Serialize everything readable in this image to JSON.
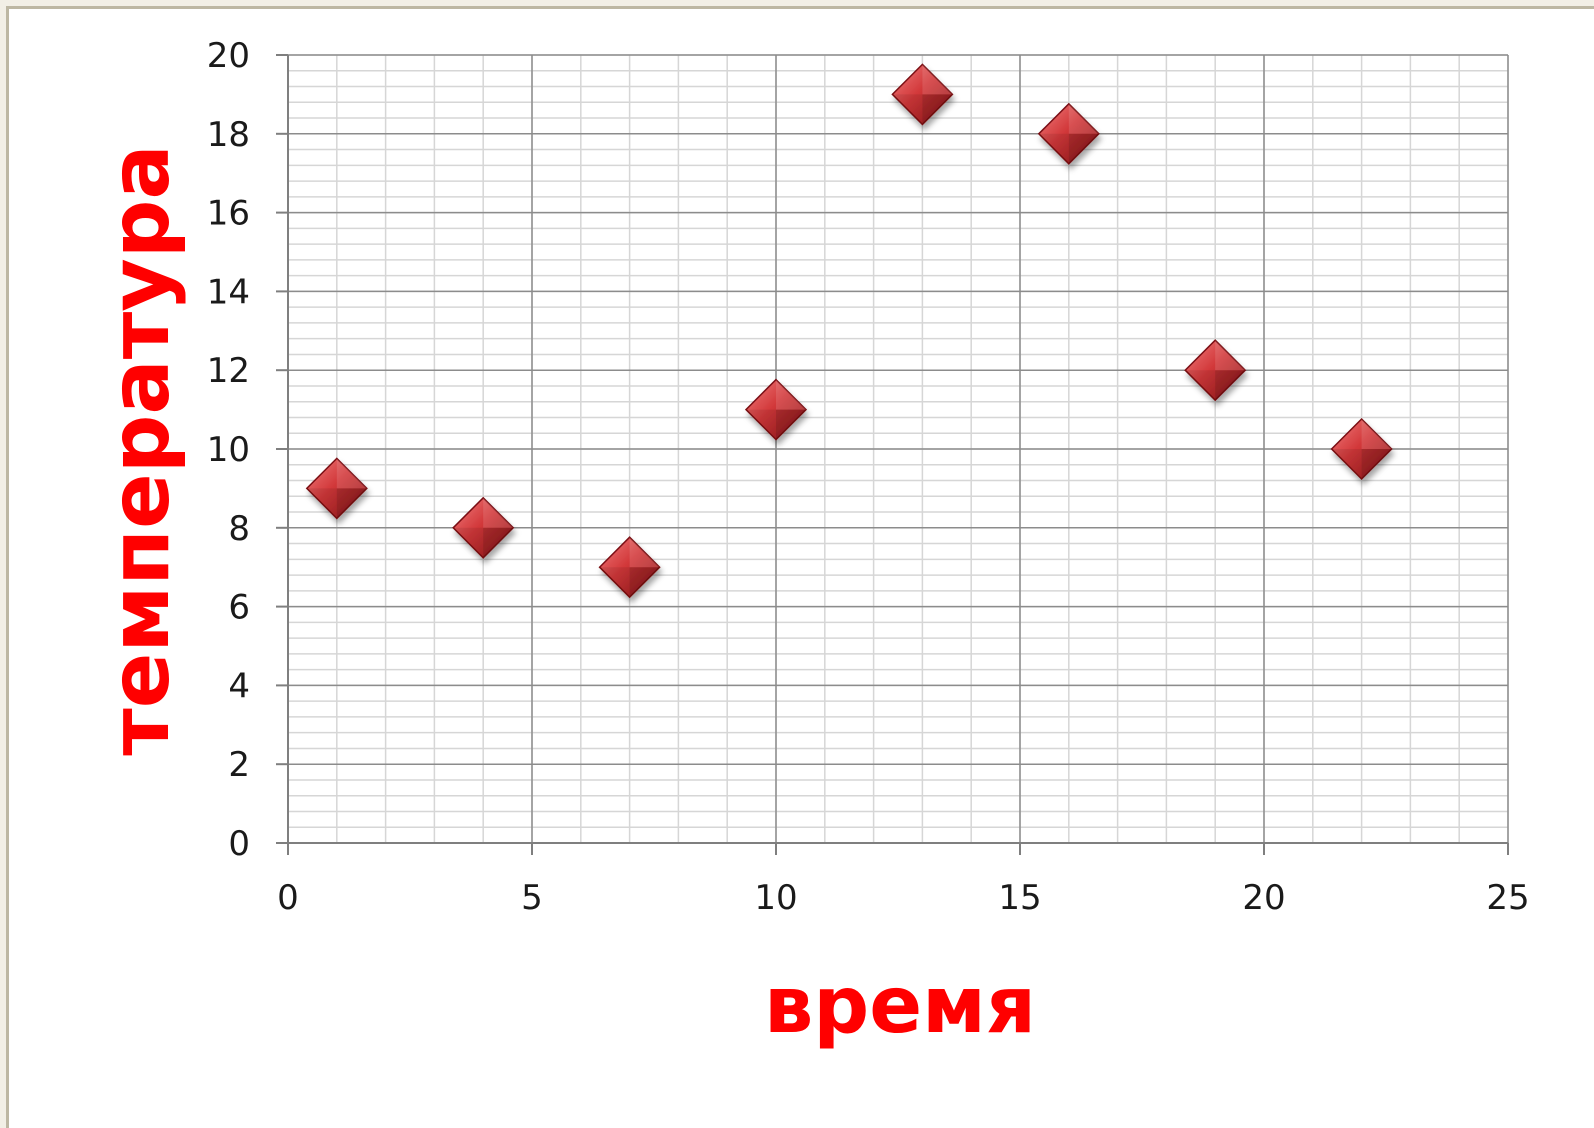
{
  "chart_data": {
    "type": "scatter",
    "title": "",
    "xlabel": "время",
    "ylabel": "температура",
    "xlim": [
      0,
      25
    ],
    "ylim": [
      0,
      20
    ],
    "x_ticks": [
      0,
      5,
      10,
      15,
      20,
      25
    ],
    "y_ticks": [
      0,
      2,
      4,
      6,
      8,
      10,
      12,
      14,
      16,
      18,
      20
    ],
    "x_minor_step": 1,
    "y_minor_step": 0.4,
    "grid": true,
    "legend": "none",
    "marker": "diamond",
    "marker_color": "#c0282a",
    "axis_title_color": "#ff0000",
    "series": [
      {
        "points": [
          {
            "x": 1,
            "y": 9
          },
          {
            "x": 4,
            "y": 8
          },
          {
            "x": 7,
            "y": 7
          },
          {
            "x": 10,
            "y": 11
          },
          {
            "x": 13,
            "y": 19
          },
          {
            "x": 16,
            "y": 18
          },
          {
            "x": 19,
            "y": 12
          },
          {
            "x": 22,
            "y": 10
          }
        ]
      }
    ]
  }
}
